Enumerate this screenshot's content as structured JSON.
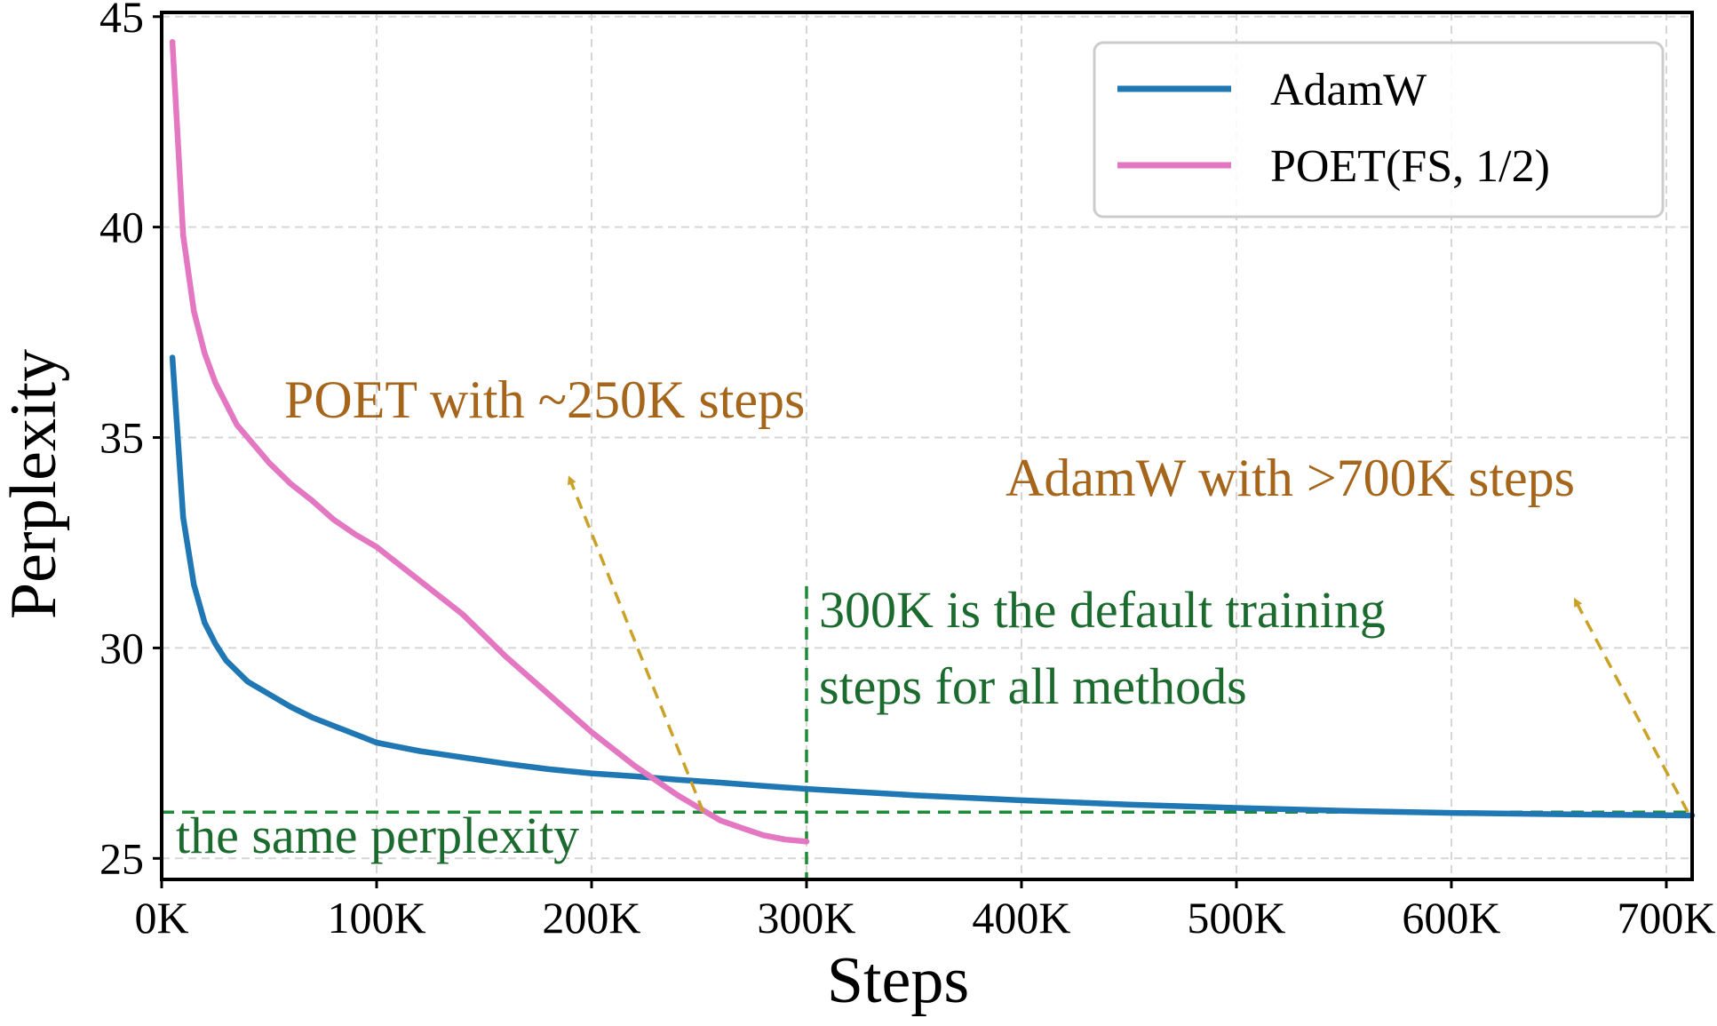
{
  "chart_data": {
    "type": "line",
    "xlabel": "Steps",
    "ylabel": "Perplexity",
    "xlim": [
      0,
      712
    ],
    "ylim": [
      24.5,
      45.1
    ],
    "x_unit": "K steps",
    "x_ticks": [
      {
        "value": 0,
        "label": "0K"
      },
      {
        "value": 100,
        "label": "100K"
      },
      {
        "value": 200,
        "label": "200K"
      },
      {
        "value": 300,
        "label": "300K"
      },
      {
        "value": 400,
        "label": "400K"
      },
      {
        "value": 500,
        "label": "500K"
      },
      {
        "value": 600,
        "label": "600K"
      },
      {
        "value": 700,
        "label": "700K"
      }
    ],
    "y_ticks": [
      {
        "value": 25,
        "label": "25"
      },
      {
        "value": 30,
        "label": "30"
      },
      {
        "value": 35,
        "label": "35"
      },
      {
        "value": 40,
        "label": "40"
      },
      {
        "value": 45,
        "label": "45"
      }
    ],
    "grid": true,
    "legend_position": "top-right",
    "series": [
      {
        "name": "AdamW",
        "color": "#1f77b4",
        "x": [
          5,
          10,
          15,
          20,
          25,
          30,
          40,
          50,
          60,
          70,
          80,
          90,
          100,
          110,
          120,
          140,
          160,
          180,
          200,
          220,
          240,
          260,
          280,
          300,
          350,
          400,
          450,
          500,
          550,
          600,
          650,
          712
        ],
        "y": [
          36.9,
          33.1,
          31.5,
          30.6,
          30.1,
          29.7,
          29.2,
          28.9,
          28.6,
          28.35,
          28.15,
          27.95,
          27.75,
          27.65,
          27.55,
          27.4,
          27.25,
          27.12,
          27.02,
          26.95,
          26.87,
          26.8,
          26.72,
          26.65,
          26.5,
          26.38,
          26.28,
          26.2,
          26.13,
          26.08,
          26.05,
          26.02
        ]
      },
      {
        "name": "POET(FS, 1/2)",
        "color": "#e377c2",
        "x": [
          5,
          10,
          15,
          20,
          25,
          30,
          35,
          40,
          45,
          50,
          60,
          70,
          80,
          90,
          100,
          120,
          140,
          160,
          180,
          200,
          220,
          240,
          250,
          260,
          270,
          280,
          290,
          300
        ],
        "y": [
          44.4,
          39.8,
          38.0,
          37.0,
          36.3,
          35.8,
          35.3,
          35.0,
          34.7,
          34.4,
          33.9,
          33.5,
          33.05,
          32.7,
          32.4,
          31.6,
          30.8,
          29.8,
          28.9,
          28.0,
          27.2,
          26.5,
          26.2,
          25.9,
          25.72,
          25.55,
          25.45,
          25.4
        ]
      }
    ],
    "reference_lines": [
      {
        "orientation": "horizontal",
        "y": 26.1,
        "color": "#1e8a36"
      },
      {
        "orientation": "vertical",
        "x": 300,
        "color": "#1e8a36"
      }
    ],
    "annotations": [
      {
        "id": "poet",
        "text": "POET with ~250K steps",
        "color": "#a5661c"
      },
      {
        "id": "adamw",
        "text": "AdamW with >700K steps",
        "color": "#a5661c"
      },
      {
        "id": "default_line1",
        "text": "300K is the default training",
        "color": "#1b6a2e"
      },
      {
        "id": "default_line2",
        "text": "steps for all methods",
        "color": "#1b6a2e"
      },
      {
        "id": "same",
        "text": "the same perplexity",
        "color": "#1b6a2e"
      }
    ],
    "arrows": [
      {
        "from": [
          252,
          26.1
        ],
        "to": [
          190,
          34.0
        ],
        "color": "#c9a227"
      },
      {
        "from": [
          710,
          26.1
        ],
        "to": [
          658,
          31.1
        ],
        "color": "#c9a227"
      }
    ]
  }
}
